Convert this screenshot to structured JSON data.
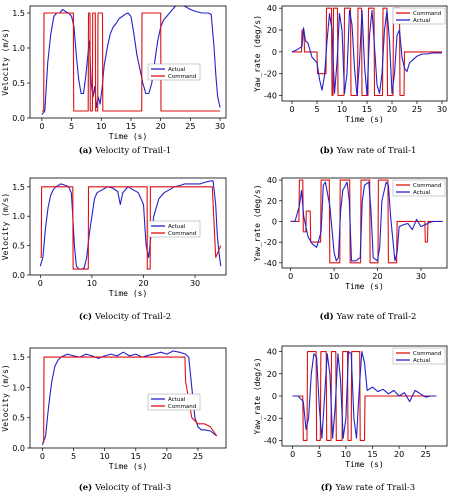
{
  "chart_data": [
    {
      "type": "line",
      "caption_tag": "(a)",
      "caption_text": "Velocity of Trail-1",
      "xlabel": "Time (s)",
      "ylabel": "Velocity (m/s)",
      "xlim": [
        -2,
        31
      ],
      "ylim": [
        0,
        1.6
      ],
      "xticks": [
        0,
        5,
        10,
        15,
        20,
        25,
        30
      ],
      "yticks": [
        0.0,
        0.5,
        1.0,
        1.5
      ],
      "legend": "bottom-right",
      "series": [
        {
          "name": "Actual",
          "color": "#2222cc",
          "x": [
            0,
            0.5,
            1,
            1.5,
            2,
            2.5,
            3,
            3.5,
            4,
            4.5,
            5,
            5.4,
            5.8,
            6.2,
            6.6,
            7,
            7.4,
            7.8,
            8,
            8.3,
            8.6,
            8.9,
            9.2,
            9.5,
            9.8,
            10.1,
            10.5,
            11,
            11.5,
            12,
            12.5,
            13,
            13.5,
            14,
            14.5,
            15,
            15.5,
            16,
            16.5,
            17,
            17.5,
            18,
            18.5,
            19,
            19.5,
            20,
            20.5,
            21,
            21.5,
            22,
            22.5,
            23,
            24,
            25,
            26,
            27,
            28,
            28.5,
            29,
            29.3,
            29.6,
            30
          ],
          "y": [
            0.05,
            0.1,
            0.8,
            1.2,
            1.45,
            1.5,
            1.5,
            1.55,
            1.52,
            1.5,
            1.45,
            1.3,
            0.9,
            0.55,
            0.35,
            0.35,
            0.6,
            0.95,
            1.1,
            0.5,
            0.3,
            0.45,
            0.15,
            0.3,
            0.2,
            0.4,
            0.75,
            1.0,
            1.2,
            1.3,
            1.35,
            1.42,
            1.45,
            1.48,
            1.5,
            1.45,
            1.2,
            0.9,
            0.7,
            0.5,
            0.35,
            0.35,
            0.5,
            0.8,
            1.1,
            1.3,
            1.4,
            1.45,
            1.5,
            1.55,
            1.6,
            1.62,
            1.6,
            1.55,
            1.52,
            1.5,
            1.5,
            1.48,
            1.0,
            0.6,
            0.3,
            0.15
          ]
        },
        {
          "name": "Command",
          "color": "#dd1111",
          "x": [
            0,
            0.3,
            0.35,
            5.3,
            5.35,
            7.8,
            7.85,
            8.1,
            8.15,
            8.5,
            8.55,
            9.0,
            9.05,
            9.4,
            9.45,
            10.2,
            10.25,
            16.8,
            16.85,
            20.0,
            20.05,
            29.5,
            29.55,
            30
          ],
          "y": [
            0.1,
            0.1,
            1.5,
            1.5,
            0.1,
            0.1,
            1.5,
            1.5,
            0.1,
            0.1,
            1.5,
            1.5,
            0.1,
            0.1,
            1.5,
            1.5,
            0.1,
            0.1,
            1.5,
            1.5,
            0.1,
            0.1,
            0.1,
            0.1
          ]
        }
      ]
    },
    {
      "type": "line",
      "caption_tag": "(b)",
      "caption_text": "Yaw rate of Trail-1",
      "xlabel": "Time (s)",
      "ylabel": "Yaw_rate (deg/s)",
      "xlim": [
        -2,
        31
      ],
      "ylim": [
        -45,
        42
      ],
      "xticks": [
        0,
        5,
        10,
        15,
        20,
        25,
        30
      ],
      "yticks": [
        -40,
        -20,
        0,
        20,
        40
      ],
      "legend": "top-right",
      "series": [
        {
          "name": "Command",
          "color": "#dd1111",
          "x": [
            0,
            1.9,
            2,
            2.4,
            2.5,
            5,
            5.1,
            6.8,
            6.9,
            7.9,
            8,
            8.2,
            8.3,
            9.1,
            9.2,
            10.4,
            10.5,
            11.7,
            11.8,
            13.1,
            13.2,
            13.9,
            14,
            15.2,
            15.3,
            16.4,
            16.5,
            18.1,
            18.2,
            19.0,
            19.1,
            20.2,
            20.3,
            21.5,
            21.6,
            22.4,
            22.5,
            30
          ],
          "y": [
            0,
            0,
            20,
            20,
            0,
            0,
            -20,
            -20,
            40,
            40,
            -40,
            -40,
            40,
            40,
            -40,
            -40,
            40,
            40,
            -40,
            -40,
            40,
            40,
            -40,
            -40,
            40,
            40,
            -40,
            -40,
            40,
            40,
            -40,
            -40,
            40,
            40,
            -40,
            -40,
            0,
            0
          ]
        },
        {
          "name": "Actual",
          "color": "#2222cc",
          "x": [
            0,
            1,
            2,
            2.3,
            2.7,
            3.2,
            4,
            5,
            5.5,
            6,
            6.5,
            7,
            7.5,
            8,
            8.5,
            9,
            9.5,
            10,
            10.5,
            11,
            11.5,
            12,
            12.5,
            13,
            13.5,
            14,
            14.5,
            15,
            15.5,
            16,
            16.5,
            17,
            17.5,
            18,
            18.5,
            19,
            19.5,
            20,
            20.5,
            21,
            21.5,
            22,
            22.5,
            23,
            23.5,
            24,
            25,
            26,
            27,
            28,
            29,
            30
          ],
          "y": [
            0,
            2,
            5,
            22,
            10,
            8,
            -5,
            -10,
            -25,
            -35,
            -22,
            10,
            35,
            20,
            -38,
            -10,
            35,
            20,
            -38,
            -20,
            38,
            25,
            -15,
            -40,
            -10,
            38,
            -12,
            -40,
            15,
            38,
            5,
            -30,
            -38,
            -20,
            20,
            38,
            10,
            -38,
            -20,
            15,
            20,
            -5,
            -15,
            -18,
            -10,
            -8,
            -4,
            -2,
            -2,
            -1,
            -1,
            -1
          ]
        }
      ]
    },
    {
      "type": "line",
      "caption_tag": "(c)",
      "caption_text": "Velocity of Trail-2",
      "xlabel": "Time (s)",
      "ylabel": "Velocity (m/s)",
      "xlim": [
        -2,
        36
      ],
      "ylim": [
        0,
        1.65
      ],
      "xticks": [
        0,
        10,
        20,
        30
      ],
      "yticks": [
        0.0,
        0.5,
        1.0,
        1.5
      ],
      "legend": "bottom-right",
      "series": [
        {
          "name": "Actual",
          "color": "#2222cc",
          "x": [
            0,
            0.5,
            1,
            1.5,
            2,
            2.5,
            3,
            4,
            5,
            5.5,
            6,
            6.3,
            6.6,
            7,
            7.5,
            8,
            8.5,
            9,
            9.5,
            10,
            10.5,
            11,
            12,
            13,
            14,
            15,
            15.5,
            16,
            17,
            18,
            19,
            20,
            20.5,
            21,
            21.5,
            22,
            23,
            24,
            25,
            26,
            27,
            28,
            29,
            30,
            31,
            32,
            33,
            33.5,
            34,
            34.3,
            34.6,
            35
          ],
          "y": [
            0.15,
            0.3,
            0.8,
            1.15,
            1.35,
            1.45,
            1.5,
            1.55,
            1.52,
            1.5,
            1.4,
            1.0,
            0.5,
            0.15,
            0.1,
            0.1,
            0.12,
            0.3,
            0.7,
            1.0,
            1.3,
            1.4,
            1.45,
            1.5,
            1.48,
            1.42,
            1.2,
            1.4,
            1.5,
            1.45,
            1.4,
            1.2,
            0.5,
            0.3,
            0.7,
            1.0,
            1.3,
            1.4,
            1.45,
            1.5,
            1.52,
            1.55,
            1.55,
            1.55,
            1.55,
            1.58,
            1.6,
            1.6,
            1.2,
            0.7,
            0.4,
            0.15
          ]
        },
        {
          "name": "Command",
          "color": "#dd1111",
          "x": [
            0,
            0.2,
            0.25,
            6.3,
            6.35,
            7.5,
            7.55,
            9.3,
            9.35,
            20.7,
            20.75,
            21.3,
            21.35,
            33.3,
            33.35,
            34,
            34.5,
            35
          ],
          "y": [
            0.3,
            0.3,
            1.5,
            1.5,
            0.1,
            0.1,
            0.1,
            0.1,
            1.5,
            1.5,
            0.1,
            0.1,
            1.5,
            1.5,
            1.5,
            0.3,
            0.4,
            0.5
          ]
        }
      ]
    },
    {
      "type": "line",
      "caption_tag": "(d)",
      "caption_text": "Yaw rate of Trail-2",
      "xlabel": "Time (s)",
      "ylabel": "Yaw_rate (deg/s)",
      "xlim": [
        -2,
        36
      ],
      "ylim": [
        -45,
        42
      ],
      "xticks": [
        0,
        10,
        20,
        30
      ],
      "yticks": [
        -40,
        -20,
        0,
        20,
        40
      ],
      "legend": "top-right",
      "series": [
        {
          "name": "Command",
          "color": "#dd1111",
          "x": [
            0,
            1.9,
            2,
            2.8,
            2.9,
            3.5,
            3.6,
            4.5,
            4.6,
            6.9,
            7,
            8.9,
            9,
            11.3,
            11.4,
            13.6,
            13.7,
            16.1,
            16.2,
            18.2,
            18.3,
            20.1,
            20.2,
            22.4,
            22.5,
            24.4,
            24.5,
            30.9,
            31,
            31.5,
            31.6,
            33
          ],
          "y": [
            0,
            0,
            40,
            40,
            -10,
            -10,
            10,
            10,
            -20,
            -20,
            40,
            40,
            -40,
            -40,
            40,
            40,
            -40,
            -40,
            40,
            40,
            -40,
            -40,
            40,
            40,
            -40,
            -40,
            0,
            0,
            -20,
            -20,
            0,
            0
          ]
        },
        {
          "name": "Actual",
          "color": "#2222cc",
          "x": [
            0,
            1,
            2,
            2.5,
            3,
            4,
            5,
            6,
            7,
            7.5,
            8,
            9,
            10,
            10.5,
            11,
            11.5,
            12,
            13,
            13.5,
            14,
            15,
            16,
            16.5,
            17,
            18,
            18.5,
            19,
            20,
            20.5,
            21,
            22,
            22.5,
            23,
            24,
            24.5,
            25,
            26,
            27,
            28,
            29,
            30,
            31,
            32,
            33,
            34,
            35
          ],
          "y": [
            0,
            0,
            15,
            30,
            5,
            -15,
            -22,
            -25,
            -10,
            35,
            38,
            15,
            -30,
            -38,
            -35,
            10,
            30,
            38,
            20,
            -38,
            -38,
            -35,
            20,
            35,
            38,
            10,
            -35,
            -38,
            -25,
            20,
            38,
            35,
            5,
            -38,
            -30,
            -5,
            -3,
            -2,
            -8,
            2,
            -5,
            -3,
            -1,
            0,
            0,
            0
          ]
        }
      ]
    },
    {
      "type": "line",
      "caption_tag": "(e)",
      "caption_text": "Velocity of Trail-3",
      "xlabel": "Time (s)",
      "ylabel": "Velocity (m/s)",
      "xlim": [
        -2,
        29.5
      ],
      "ylim": [
        0,
        1.65
      ],
      "xticks": [
        0,
        5,
        10,
        15,
        20,
        25
      ],
      "yticks": [
        0.0,
        0.5,
        1.0,
        1.5
      ],
      "legend": "bottom-right",
      "series": [
        {
          "name": "Actual",
          "color": "#2222cc",
          "x": [
            0,
            0.5,
            1,
            1.5,
            2,
            2.5,
            3,
            4,
            5,
            6,
            7,
            8,
            9,
            10,
            11,
            12,
            13,
            14,
            15,
            16,
            17,
            18,
            19,
            20,
            21,
            22,
            23,
            23.5,
            24,
            24.5,
            25,
            25.5,
            26,
            27,
            28
          ],
          "y": [
            0.05,
            0.2,
            0.7,
            1.1,
            1.35,
            1.45,
            1.5,
            1.55,
            1.52,
            1.5,
            1.55,
            1.52,
            1.48,
            1.52,
            1.55,
            1.52,
            1.58,
            1.52,
            1.55,
            1.5,
            1.53,
            1.55,
            1.58,
            1.55,
            1.6,
            1.58,
            1.55,
            1.5,
            1.0,
            0.5,
            0.35,
            0.3,
            0.3,
            0.28,
            0.2
          ]
        },
        {
          "name": "Command",
          "color": "#dd1111",
          "x": [
            0,
            0.2,
            0.25,
            22.9,
            23,
            24,
            25,
            26,
            27,
            28
          ],
          "y": [
            0.1,
            0.1,
            1.5,
            1.5,
            1.1,
            0.5,
            0.4,
            0.4,
            0.35,
            0.2
          ]
        }
      ]
    },
    {
      "type": "line",
      "caption_tag": "(f)",
      "caption_text": "Yaw rate of Trail-3",
      "xlabel": "Time (s)",
      "ylabel": "Yaw_rate (deg/s)",
      "xlim": [
        -2,
        29
      ],
      "ylim": [
        -45,
        45
      ],
      "xticks": [
        0,
        5,
        10,
        15,
        20,
        25
      ],
      "yticks": [
        -40,
        -20,
        0,
        20,
        40
      ],
      "legend": "top-right",
      "series": [
        {
          "name": "Command",
          "color": "#dd1111",
          "x": [
            0,
            1.9,
            2,
            2.7,
            2.8,
            4.4,
            4.5,
            5.2,
            5.3,
            6.3,
            6.4,
            7.2,
            7.3,
            8.1,
            8.2,
            9.3,
            9.4,
            10.3,
            10.4,
            11.0,
            11.1,
            12.6,
            12.7,
            13.5,
            13.6,
            27
          ],
          "y": [
            0,
            0,
            -40,
            -40,
            40,
            40,
            -40,
            -40,
            40,
            40,
            -40,
            -40,
            40,
            40,
            -40,
            -40,
            40,
            40,
            -40,
            -40,
            40,
            40,
            -40,
            -40,
            0,
            0
          ]
        },
        {
          "name": "Actual",
          "color": "#2222cc",
          "x": [
            0,
            1,
            2,
            2.5,
            3,
            3.5,
            4,
            4.5,
            5,
            5.5,
            6,
            6.5,
            7,
            7.5,
            8,
            8.5,
            9,
            9.5,
            10,
            10.5,
            11,
            11.5,
            12,
            12.5,
            13,
            13.5,
            14,
            15,
            16,
            17,
            18,
            19,
            20,
            21,
            22,
            23,
            24,
            25,
            26,
            27
          ],
          "y": [
            0,
            0,
            -5,
            -30,
            -20,
            20,
            38,
            35,
            -10,
            -38,
            0,
            38,
            20,
            -38,
            -10,
            38,
            15,
            -38,
            -20,
            40,
            38,
            -20,
            -38,
            5,
            40,
            30,
            5,
            8,
            4,
            6,
            2,
            5,
            0,
            3,
            -5,
            5,
            2,
            -1,
            0,
            0
          ]
        }
      ]
    }
  ]
}
